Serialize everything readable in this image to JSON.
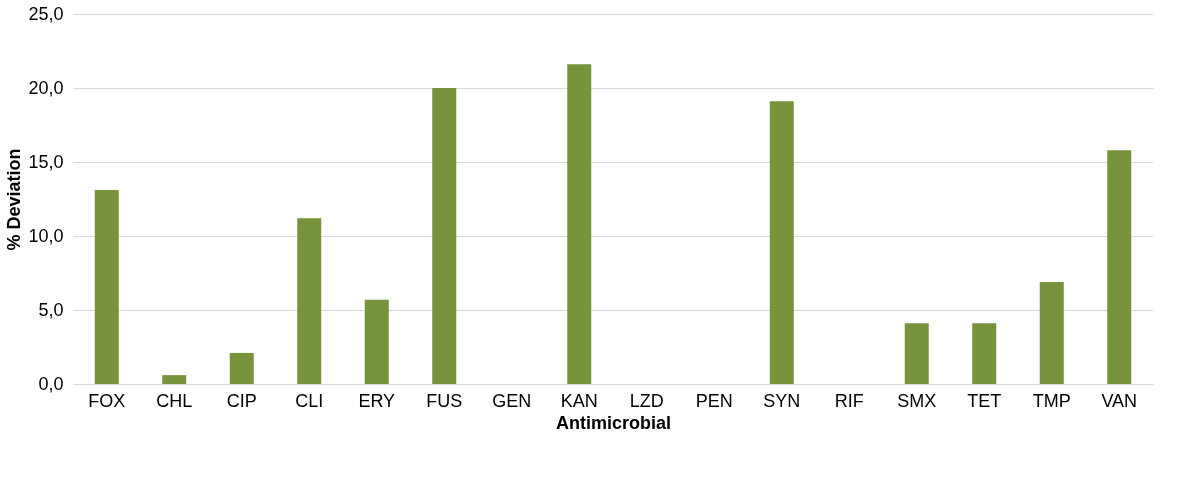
{
  "chart_data": {
    "type": "bar",
    "xlabel": "Antimicrobial",
    "ylabel": "% Deviation",
    "categories": [
      "FOX",
      "CHL",
      "CIP",
      "CLI",
      "ERY",
      "FUS",
      "GEN",
      "KAN",
      "LZD",
      "PEN",
      "SYN",
      "RIF",
      "SMX",
      "TET",
      "TMP",
      "VAN"
    ],
    "values": [
      13.1,
      0.6,
      2.1,
      11.2,
      5.7,
      20.0,
      0,
      21.6,
      0,
      0,
      19.1,
      0,
      4.1,
      4.1,
      6.9,
      15.8
    ],
    "color": "#77933c",
    "ylim": [
      0,
      25
    ],
    "yticks": [
      {
        "value": 0,
        "label": "0,0"
      },
      {
        "value": 5,
        "label": "5,0"
      },
      {
        "value": 10,
        "label": "10,0"
      },
      {
        "value": 15,
        "label": "15,0"
      },
      {
        "value": 20,
        "label": "20,0"
      },
      {
        "value": 25,
        "label": "25,0"
      }
    ],
    "grid": "y"
  }
}
